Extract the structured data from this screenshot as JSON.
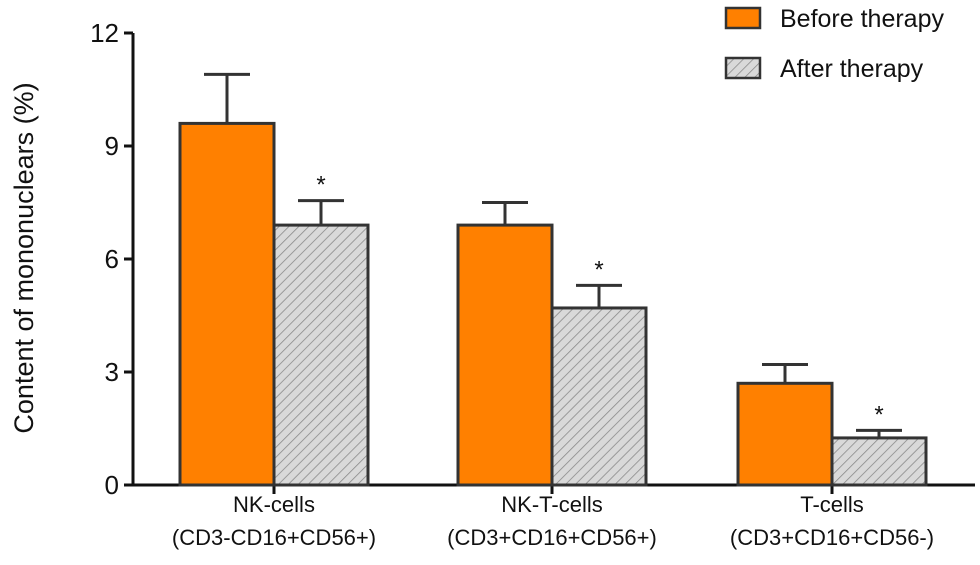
{
  "chart_data": {
    "type": "bar",
    "title": "",
    "xlabel": "",
    "ylabel": "Content of mononuclears (%)",
    "ylim": [
      0,
      12
    ],
    "yticks": [
      "0",
      "3",
      "6",
      "9",
      "12"
    ],
    "grid": false,
    "legend_position": "top-right",
    "categories": [
      [
        "NK-cells",
        "(CD3-CD16+CD56+)"
      ],
      [
        "NK-T-cells",
        "(CD3+CD16+CD56+)"
      ],
      [
        "T-cells",
        "(CD3+CD16+CD56-)"
      ]
    ],
    "series": [
      {
        "name": "Before therapy",
        "values": [
          9.6,
          6.9,
          2.7
        ],
        "error_upper": [
          10.9,
          7.5,
          3.2
        ],
        "color": "#ff8000",
        "pattern": "solid",
        "significance": [
          "",
          "",
          ""
        ]
      },
      {
        "name": "After therapy",
        "values": [
          6.9,
          4.7,
          1.25
        ],
        "error_upper": [
          7.55,
          5.3,
          1.45
        ],
        "color": "#d4d4d4",
        "pattern": "diagonal-hatch",
        "significance": [
          "*",
          "*",
          "*"
        ]
      }
    ]
  }
}
